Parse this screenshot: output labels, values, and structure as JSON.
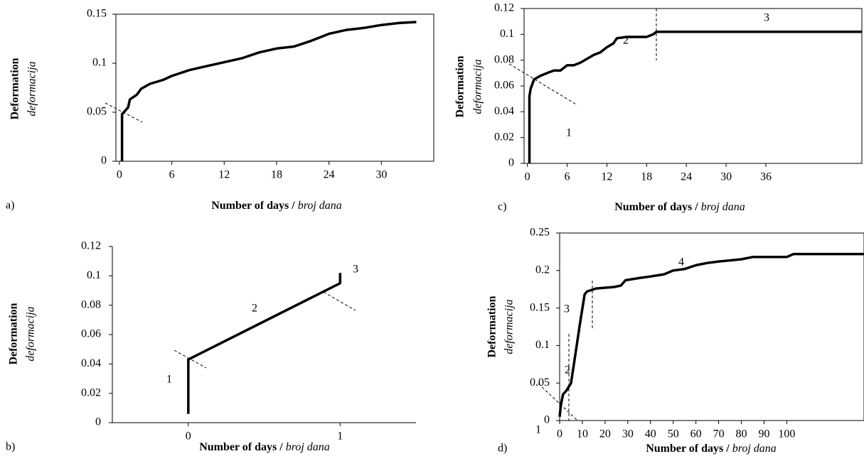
{
  "chart_data": [
    {
      "type": "line",
      "label": "a)",
      "ylabel": [
        "Deformation",
        "deformacija"
      ],
      "xlabel": [
        "Number of days /",
        "broj dana"
      ],
      "x": [
        0.3,
        0.3,
        1,
        1.2,
        2,
        2.5,
        3.5,
        5,
        6,
        8,
        10,
        12,
        14,
        16,
        18,
        20,
        22,
        24,
        26,
        28,
        30,
        32,
        34
      ],
      "values": [
        0,
        0.048,
        0.055,
        0.063,
        0.068,
        0.074,
        0.079,
        0.083,
        0.087,
        0.093,
        0.097,
        0.101,
        0.105,
        0.111,
        0.115,
        0.117,
        0.123,
        0.13,
        0.134,
        0.136,
        0.139,
        0.141,
        0.142
      ],
      "color": "#000000",
      "xlim": [
        -0.4,
        36
      ],
      "xticks": [
        0,
        6,
        12,
        18,
        24,
        30
      ],
      "ylim": [
        0,
        0.15
      ],
      "yticks": [
        0,
        0.05,
        0.1,
        0.15
      ],
      "annotations": []
    },
    {
      "type": "line",
      "label": "b)",
      "ylabel": [
        "Deformation",
        "deformacija"
      ],
      "xlabel": [
        "Number of days /",
        "broj dana"
      ],
      "x": [
        0,
        0,
        1,
        1
      ],
      "values": [
        0.006,
        0.043,
        0.095,
        0.102
      ],
      "color": "#000000",
      "xlim": [
        -0.5,
        1.5
      ],
      "xticks": [
        0,
        1
      ],
      "ylim": [
        0,
        0.12
      ],
      "yticks": [
        0,
        0.02,
        0.04,
        0.06,
        0.08,
        0.1,
        0.12
      ],
      "annotations": [
        "1",
        "2",
        "3"
      ]
    },
    {
      "type": "line",
      "label": "c)",
      "ylabel": [
        "Deformation",
        "deformacija"
      ],
      "xlabel": [
        "Number of days /",
        "broj dana"
      ],
      "x": [
        0.3,
        0.3,
        0.5,
        1,
        2,
        3,
        4,
        5,
        6,
        7,
        8,
        10,
        11,
        12,
        13,
        13.5,
        15,
        18,
        19,
        19.5,
        50.5
      ],
      "values": [
        0,
        0.052,
        0.058,
        0.065,
        0.068,
        0.07,
        0.072,
        0.072,
        0.076,
        0.076,
        0.078,
        0.084,
        0.086,
        0.09,
        0.093,
        0.097,
        0.098,
        0.098,
        0.1,
        0.102,
        0.102
      ],
      "color": "#000000",
      "xlim": [
        -0.5,
        50.5
      ],
      "xticks": [
        0,
        6,
        12,
        18,
        24,
        30,
        36
      ],
      "ylim": [
        0,
        0.12
      ],
      "yticks": [
        0,
        0.02,
        0.04,
        0.06,
        0.08,
        0.1,
        0.12
      ],
      "annotations": [
        "1",
        "2",
        "3"
      ]
    },
    {
      "type": "line",
      "label": "d)",
      "ylabel": [
        "Deformation",
        "deformacija"
      ],
      "xlabel": [
        "Number of days /",
        "broj dana"
      ],
      "x": [
        0,
        0.5,
        1.5,
        3,
        5,
        7,
        9,
        11,
        12,
        16,
        24,
        27,
        29,
        35,
        40,
        46,
        50,
        55,
        60,
        65,
        70,
        80,
        85,
        100,
        103,
        134
      ],
      "values": [
        0.005,
        0.02,
        0.035,
        0.04,
        0.05,
        0.09,
        0.13,
        0.168,
        0.172,
        0.176,
        0.178,
        0.18,
        0.187,
        0.19,
        0.192,
        0.195,
        0.2,
        0.202,
        0.207,
        0.21,
        0.212,
        0.215,
        0.218,
        0.218,
        0.222,
        0.222
      ],
      "color": "#000000",
      "xlim": [
        0,
        134
      ],
      "xticks": [
        0,
        10,
        20,
        30,
        40,
        50,
        60,
        70,
        80,
        90,
        100
      ],
      "ylim": [
        0,
        0.25
      ],
      "yticks": [
        0,
        0.05,
        0.1,
        0.15,
        0.2,
        0.25
      ],
      "annotations": [
        "1",
        "2",
        "3",
        "4"
      ]
    }
  ]
}
